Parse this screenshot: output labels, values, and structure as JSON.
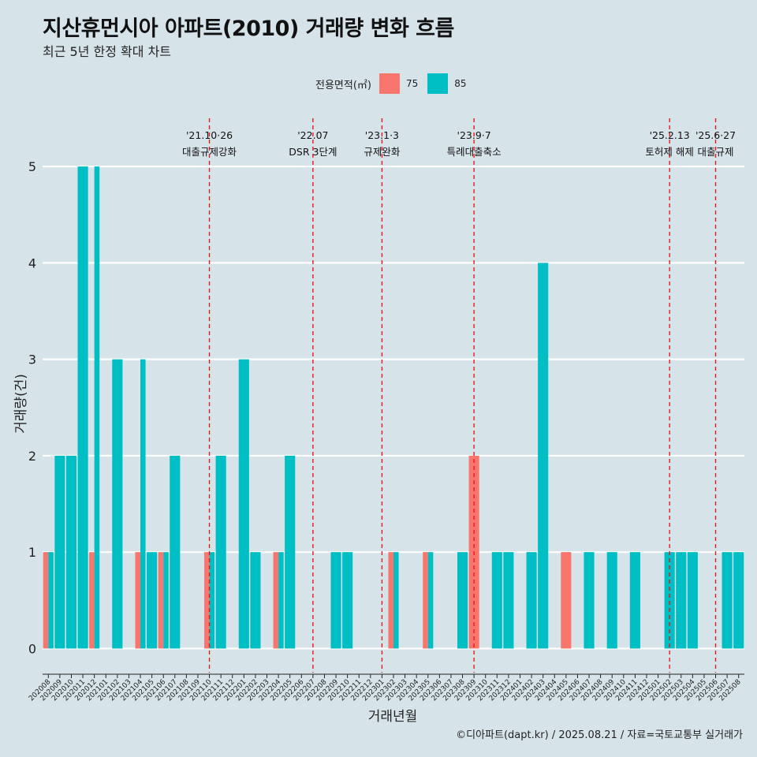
{
  "header": {
    "title": "지산휴먼시아 아파트(2010) 거래량 변화 흐름",
    "subtitle": "최근 5년 한정 확대 차트"
  },
  "legend": {
    "title": "전용면적(㎡)",
    "items": [
      {
        "label": "75",
        "color": "#f8766d"
      },
      {
        "label": "85",
        "color": "#00bfc4"
      }
    ]
  },
  "caption": "©디아파트(dapt.kr) / 2025.08.21 / 자료=국토교통부 실거래가",
  "chart_data": {
    "type": "bar",
    "title": "지산휴먼시아 아파트(2010) 거래량 변화 흐름",
    "subtitle": "최근 5년 한정 확대 차트",
    "xlabel": "거래년월",
    "ylabel": "거래량(건)",
    "ylim": [
      -0.25,
      5.5
    ],
    "yticks": [
      0,
      1,
      2,
      3,
      4,
      5
    ],
    "grid": true,
    "legend_position": "top",
    "categories": [
      "202008",
      "202009",
      "202010",
      "202011",
      "202012",
      "202101",
      "202102",
      "202103",
      "202104",
      "202105",
      "202106",
      "202107",
      "202108",
      "202109",
      "202110",
      "202111",
      "202112",
      "202201",
      "202202",
      "202203",
      "202204",
      "202205",
      "202206",
      "202207",
      "202208",
      "202209",
      "202210",
      "202211",
      "202212",
      "202301",
      "202302",
      "202303",
      "202304",
      "202305",
      "202306",
      "202307",
      "202308",
      "202309",
      "202310",
      "202311",
      "202312",
      "202401",
      "202402",
      "202403",
      "202404",
      "202405",
      "202406",
      "202407",
      "202408",
      "202409",
      "202410",
      "202411",
      "202412",
      "202501",
      "202502",
      "202503",
      "202504",
      "202505",
      "202506",
      "202507",
      "202508"
    ],
    "series": [
      {
        "name": "75",
        "color": "#f8766d",
        "values": [
          1,
          0,
          0,
          0,
          1,
          0,
          0,
          0,
          1,
          0,
          1,
          0,
          0,
          0,
          1,
          0,
          0,
          0,
          0,
          0,
          1,
          0,
          0,
          0,
          0,
          0,
          0,
          0,
          0,
          0,
          1,
          0,
          0,
          1,
          0,
          0,
          0,
          2,
          0,
          0,
          0,
          0,
          0,
          0,
          0,
          1,
          0,
          0,
          0,
          0,
          0,
          0,
          0,
          0,
          0,
          0,
          0,
          0,
          0,
          0,
          0
        ]
      },
      {
        "name": "85",
        "color": "#00bfc4",
        "values": [
          1,
          2,
          2,
          5,
          5,
          0,
          3,
          0,
          3,
          1,
          1,
          2,
          0,
          0,
          1,
          2,
          0,
          3,
          1,
          0,
          1,
          2,
          0,
          0,
          0,
          1,
          1,
          0,
          0,
          0,
          1,
          0,
          0,
          1,
          0,
          0,
          1,
          0,
          0,
          1,
          1,
          0,
          1,
          4,
          0,
          0,
          0,
          1,
          0,
          1,
          0,
          1,
          0,
          0,
          1,
          1,
          1,
          0,
          0,
          1,
          1
        ]
      }
    ],
    "annotations": [
      {
        "x": "202110",
        "line1": "'21.10·26",
        "line2": "대출규제강화",
        "color": "#e41a1c"
      },
      {
        "x": "202207",
        "line1": "'22.07",
        "line2": "DSR 3단계",
        "color": "#e41a1c"
      },
      {
        "x": "202301",
        "line1": "'23.1·3",
        "line2": "규제완화",
        "color": "#e41a1c"
      },
      {
        "x": "202309",
        "line1": "'23.9·7",
        "line2": "특례대출축소",
        "color": "#e41a1c"
      },
      {
        "x": "202502",
        "line1": "'25.2.13",
        "line2": "토허제 해제",
        "color": "#e41a1c"
      },
      {
        "x": "202506",
        "line1": "'25.6·27",
        "line2": "대출규제",
        "color": "#e41a1c"
      }
    ]
  }
}
